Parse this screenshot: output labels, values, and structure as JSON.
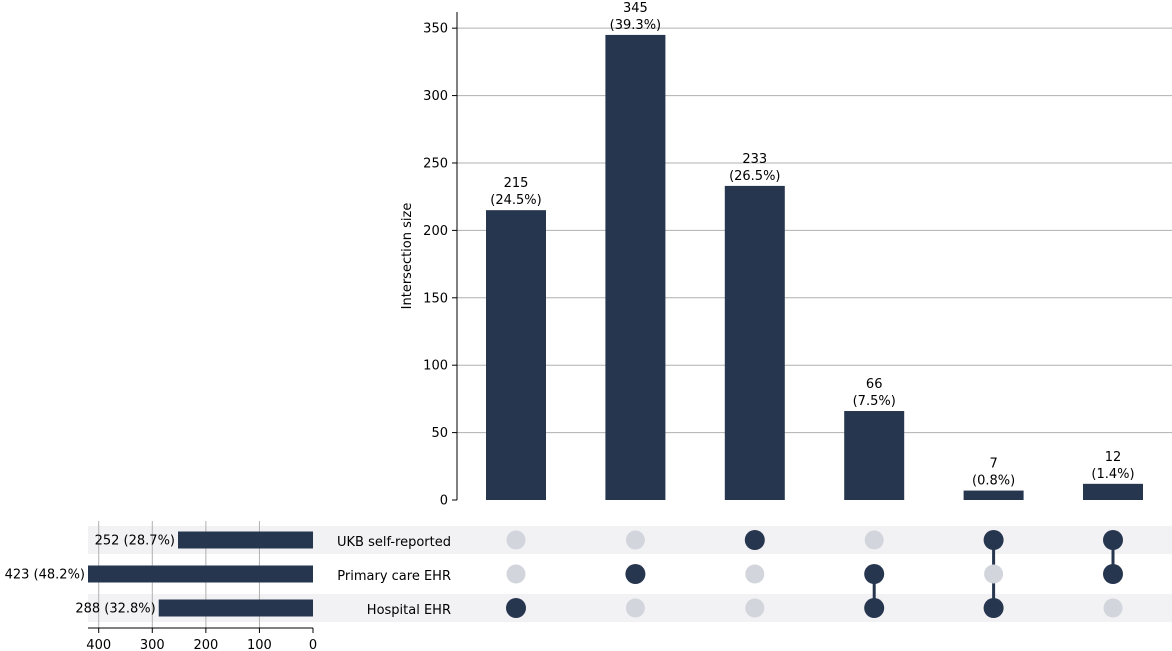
{
  "chart_data": {
    "type": "bar",
    "chart_kind": "upset",
    "ylabel": "Intersection size",
    "ylim": [
      0,
      362
    ],
    "yticks": [
      0,
      50,
      100,
      150,
      200,
      250,
      300,
      350
    ],
    "grid": true,
    "color": "#27364f",
    "inactive_dot_color": "#d2d5dc",
    "stripe_color": "#f2f2f5",
    "sets": [
      {
        "name": "UKB self-reported",
        "size": 252,
        "label": "252 (28.7%)"
      },
      {
        "name": "Primary care EHR",
        "size": 423,
        "label": "423 (48.2%)"
      },
      {
        "name": "Hospital EHR",
        "size": 288,
        "label": "288 (32.8%)"
      }
    ],
    "set_size_xlim": [
      420,
      0
    ],
    "set_size_ticks": [
      400,
      300,
      200,
      100,
      0
    ],
    "intersections": [
      {
        "members": [
          "Hospital EHR"
        ],
        "value": 215,
        "label_count": "215",
        "label_pct": "(24.5%)"
      },
      {
        "members": [
          "Primary care EHR"
        ],
        "value": 345,
        "label_count": "345",
        "label_pct": "(39.3%)"
      },
      {
        "members": [
          "UKB self-reported"
        ],
        "value": 233,
        "label_count": "233",
        "label_pct": "(26.5%)"
      },
      {
        "members": [
          "Primary care EHR",
          "Hospital EHR"
        ],
        "value": 66,
        "label_count": "66",
        "label_pct": "(7.5%)"
      },
      {
        "members": [
          "UKB self-reported",
          "Hospital EHR"
        ],
        "value": 7,
        "label_count": "7",
        "label_pct": "(0.8%)"
      },
      {
        "members": [
          "UKB self-reported",
          "Primary care EHR"
        ],
        "value": 12,
        "label_count": "12",
        "label_pct": "(1.4%)"
      }
    ]
  }
}
